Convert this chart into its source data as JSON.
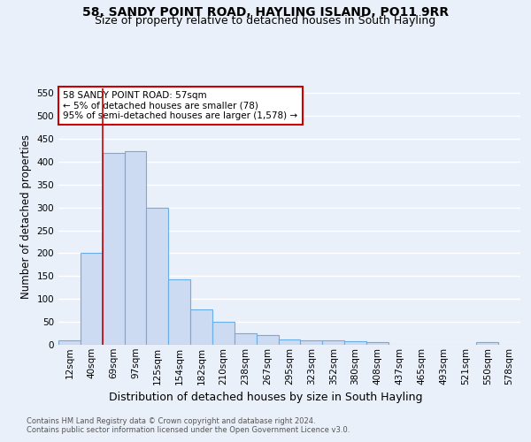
{
  "title": "58, SANDY POINT ROAD, HAYLING ISLAND, PO11 9RR",
  "subtitle": "Size of property relative to detached houses in South Hayling",
  "xlabel": "Distribution of detached houses by size in South Hayling",
  "ylabel": "Number of detached properties",
  "footnote1": "Contains HM Land Registry data © Crown copyright and database right 2024.",
  "footnote2": "Contains public sector information licensed under the Open Government Licence v3.0.",
  "annotation_line1": "58 SANDY POINT ROAD: 57sqm",
  "annotation_line2": "← 5% of detached houses are smaller (78)",
  "annotation_line3": "95% of semi-detached houses are larger (1,578) →",
  "bar_categories": [
    "12sqm",
    "40sqm",
    "69sqm",
    "97sqm",
    "125sqm",
    "154sqm",
    "182sqm",
    "210sqm",
    "238sqm",
    "267sqm",
    "295sqm",
    "323sqm",
    "352sqm",
    "380sqm",
    "408sqm",
    "437sqm",
    "465sqm",
    "493sqm",
    "521sqm",
    "550sqm",
    "578sqm"
  ],
  "bar_values": [
    10,
    200,
    420,
    422,
    300,
    143,
    77,
    50,
    25,
    22,
    12,
    10,
    10,
    7,
    5,
    0,
    0,
    0,
    0,
    5,
    0
  ],
  "bar_color": "#ccdaf2",
  "bar_edge_color": "#6aaee8",
  "vline_color": "#cc0000",
  "annotation_box_color": "#cc0000",
  "annotation_box_fill": "#ffffff",
  "ylim": [
    0,
    560
  ],
  "yticks": [
    0,
    50,
    100,
    150,
    200,
    250,
    300,
    350,
    400,
    450,
    500,
    550
  ],
  "bg_color": "#eaf0fa",
  "grid_color": "#ffffff",
  "title_fontsize": 10,
  "subtitle_fontsize": 9,
  "ylabel_fontsize": 8.5,
  "xlabel_fontsize": 9,
  "tick_fontsize": 7.5,
  "annotation_fontsize": 7.5,
  "footnote_fontsize": 6.0
}
